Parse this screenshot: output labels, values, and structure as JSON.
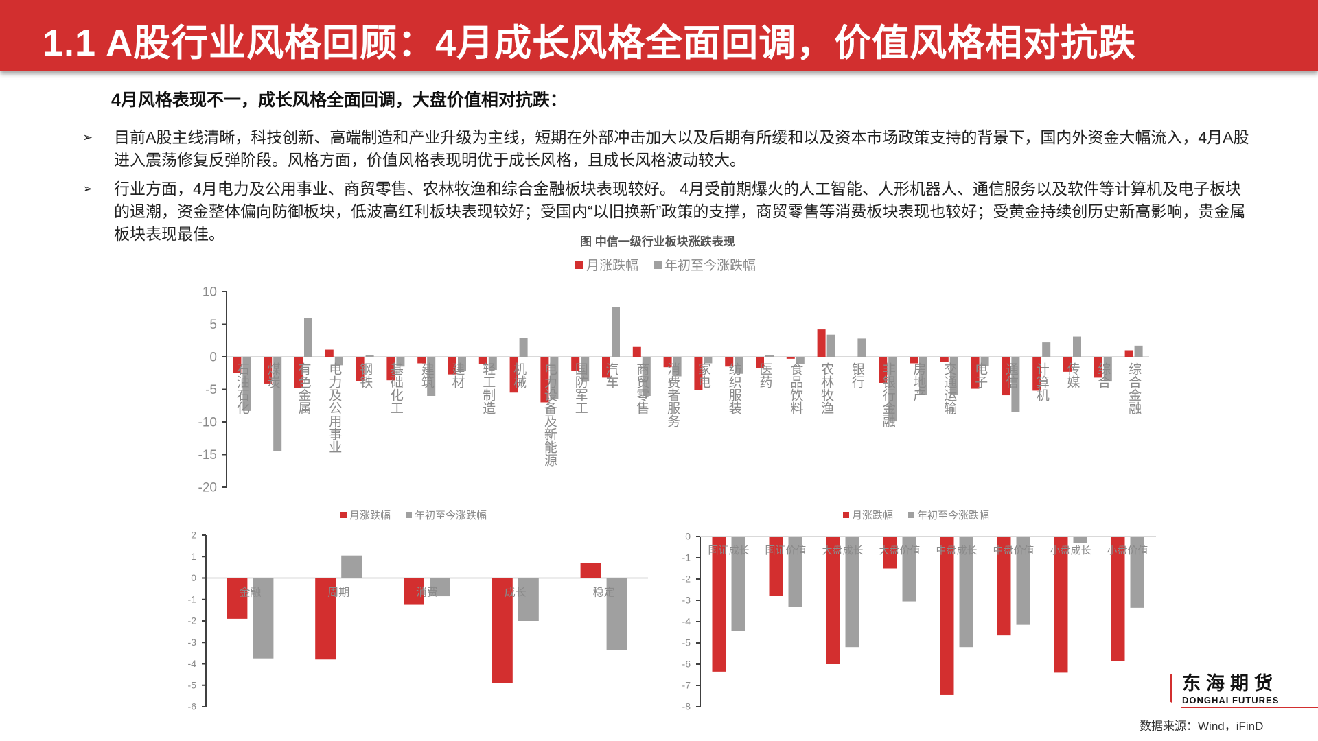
{
  "header": {
    "title": "1.1  A股行业风格回顾：4月成长风格全面回调，价值风格相对抗跌"
  },
  "summary": {
    "headline": "4月风格表现不一，成长风格全面回调，大盘价值相对抗跌："
  },
  "bullets": [
    {
      "marker": "➢",
      "text": "目前A股主线清晰，科技创新、高端制造和产业升级为主线，短期在外部冲击加大以及后期有所缓和以及资本市场政策支持的背景下，国内外资金大幅流入，4月A股进入震荡修复反弹阶段。风格方面，价值风格表现明优于成长风格，且成长风格波动较大。"
    },
    {
      "marker": "➢",
      "text": "行业方面，4月电力及公用事业、商贸零售、农林牧渔和综合金融板块表现较好。 4月受前期爆火的人工智能、人形机器人、通信服务以及软件等计算机及电子板块的退潮，资金整体偏向防御板块，低波高红利板块表现较好；受国内“以旧换新”政策的支撑，商贸零售等消费板块表现也较好；受黄金持续创历史新高影响，贵金属板块表现最佳。"
    }
  ],
  "colors": {
    "header": "#d22f2f",
    "monthly": "#d32f2f",
    "ytd": "#a0a0a0",
    "axis": "#404040",
    "tick_text": "#8a8a8a"
  },
  "legend": {
    "monthly": "月涨跌幅",
    "ytd": "年初至今涨跌幅"
  },
  "footer": {
    "logo_cn": "东海期货",
    "logo_en": "DONGHAI FUTURES",
    "source": "数据来源：Wind，iFinD"
  },
  "chart_data": [
    {
      "type": "bar",
      "title": "图 中信一级行业板块涨跌表现",
      "xlabel": "",
      "ylabel": "",
      "ylim": [
        -20,
        10
      ],
      "yticks": [
        10,
        5,
        0,
        -5,
        -10,
        -15,
        -20
      ],
      "legend_position": "top",
      "grid": false,
      "categories": [
        "石油石化",
        "煤炭",
        "有色金属",
        "电力及公用事业",
        "钢铁",
        "基础化工",
        "建筑",
        "建材",
        "轻工制造",
        "机械",
        "电力设备及新能源",
        "国防军工",
        "汽车",
        "商贸零售",
        "消费者服务",
        "家电",
        "纺织服装",
        "医药",
        "食品饮料",
        "农林牧渔",
        "银行",
        "非银行金融",
        "房地产",
        "交通运输",
        "电子",
        "通信",
        "计算机",
        "传媒",
        "综合",
        "综合金融"
      ],
      "series": [
        {
          "name": "月涨跌幅",
          "values": [
            -2.5,
            -4.1,
            -4.8,
            1.1,
            -3.7,
            -3.6,
            -1.0,
            -2.7,
            -1.1,
            -5.5,
            -7.0,
            -2.2,
            -3.2,
            1.5,
            -1.6,
            -5.1,
            -1.5,
            -1.7,
            -0.3,
            4.2,
            0.0,
            -4.0,
            -1.0,
            -0.8,
            -4.9,
            -5.9,
            -5.2,
            -2.3,
            -3.2,
            1.0
          ]
        },
        {
          "name": "年初至今涨跌幅",
          "values": [
            -8.3,
            -14.5,
            6.0,
            -1.3,
            0.3,
            -1.5,
            -6.0,
            -2.2,
            -2.0,
            2.9,
            -6.5,
            -3.8,
            7.6,
            -6.0,
            -3.0,
            -1.0,
            -2.6,
            0.3,
            -1.1,
            3.4,
            2.8,
            -9.9,
            -5.8,
            -5.8,
            -1.4,
            -8.5,
            2.2,
            3.1,
            -3.8,
            1.7
          ]
        }
      ]
    },
    {
      "type": "bar",
      "title": "",
      "ylim": [
        -6,
        2
      ],
      "yticks": [
        2,
        1,
        0,
        -1,
        -2,
        -3,
        -4,
        -5,
        -6
      ],
      "legend_position": "top",
      "grid": false,
      "categories": [
        "金融",
        "周期",
        "消费",
        "成长",
        "稳定"
      ],
      "series": [
        {
          "name": "月涨跌幅",
          "values": [
            -1.9,
            -3.8,
            -1.25,
            -4.9,
            0.7
          ]
        },
        {
          "name": "年初至今涨跌幅",
          "values": [
            -3.75,
            1.05,
            -0.85,
            -2.0,
            -3.35
          ]
        }
      ]
    },
    {
      "type": "bar",
      "title": "",
      "ylim": [
        -8,
        0
      ],
      "yticks": [
        0,
        -1,
        -2,
        -3,
        -4,
        -5,
        -6,
        -7,
        -8
      ],
      "legend_position": "top",
      "grid": false,
      "categories": [
        "国证成长",
        "国证价值",
        "大盘成长",
        "大盘价值",
        "中盘成长",
        "中盘价值",
        "小盘成长",
        "小盘价值"
      ],
      "series": [
        {
          "name": "月涨跌幅",
          "values": [
            -6.35,
            -2.8,
            -6.0,
            -1.5,
            -7.45,
            -4.65,
            -6.4,
            -5.85
          ]
        },
        {
          "name": "年初至今涨跌幅",
          "values": [
            -4.45,
            -3.3,
            -5.2,
            -3.05,
            -5.2,
            -4.15,
            -0.3,
            -3.35
          ]
        }
      ]
    }
  ]
}
